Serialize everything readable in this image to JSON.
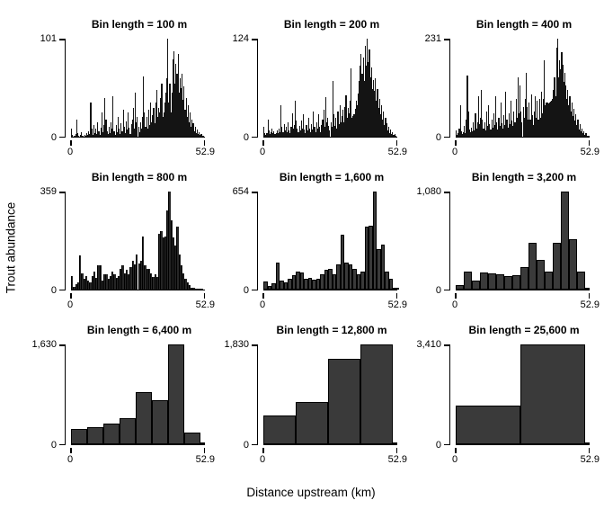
{
  "figure": {
    "ylabel": "Trout abundance",
    "xlabel": "Distance upstream (km)",
    "x_tick_labels": [
      "0",
      "52.9"
    ],
    "background": "#ffffff",
    "axis_color": "#000000",
    "bar_fill": "#3a3a3a",
    "bar_fill_dense": "#141414",
    "text_color": "#000000"
  },
  "chart_data": [
    {
      "type": "bar",
      "title": "Bin length = 100 m",
      "bin_length_m": 100,
      "xlabel": "Distance upstream (km)",
      "ylabel": "Trout abundance",
      "xlim": [
        0,
        52.9
      ],
      "ylim": [
        0,
        101
      ],
      "ymax": 101,
      "ymax_label": "101",
      "y0_label": "0",
      "x_ticks": [
        "0",
        "52.9"
      ],
      "values": [
        8,
        2,
        0,
        1,
        3,
        18,
        4,
        1,
        0,
        2,
        5,
        1,
        0,
        2,
        1,
        4,
        2,
        6,
        3,
        35,
        8,
        2,
        12,
        4,
        8,
        3,
        15,
        6,
        2,
        9,
        25,
        5,
        12,
        40,
        18,
        6,
        3,
        10,
        4,
        15,
        8,
        42,
        6,
        2,
        12,
        5,
        20,
        8,
        3,
        14,
        6,
        28,
        10,
        4,
        16,
        7,
        25,
        9,
        3,
        13,
        18,
        30,
        8,
        45,
        15,
        20,
        10,
        5,
        15,
        8,
        20,
        62,
        25,
        10,
        20,
        8,
        28,
        12,
        35,
        15,
        22,
        30,
        14,
        35,
        48,
        20,
        30,
        25,
        40,
        55,
        20,
        25,
        35,
        45,
        60,
        101,
        35,
        55,
        25,
        45,
        80,
        88,
        55,
        75,
        65,
        85,
        45,
        60,
        50,
        65,
        38,
        52,
        28,
        40,
        20,
        32,
        15,
        25,
        10,
        18,
        14,
        6,
        10,
        4,
        7,
        3,
        5,
        2,
        3,
        1,
        1,
        0
      ]
    },
    {
      "type": "bar",
      "title": "Bin length = 200 m",
      "bin_length_m": 200,
      "xlim": [
        0,
        52.9
      ],
      "ylim": [
        0,
        124
      ],
      "ymax": 124,
      "ymax_label": "124",
      "y0_label": "0",
      "x_ticks": [
        "0",
        "52.9"
      ],
      "values": [
        12,
        4,
        2,
        5,
        22,
        8,
        3,
        6,
        10,
        4,
        7,
        3,
        5,
        8,
        4,
        10,
        6,
        40,
        12,
        6,
        16,
        8,
        12,
        6,
        18,
        8,
        5,
        12,
        30,
        10,
        15,
        45,
        20,
        10,
        6,
        14,
        8,
        20,
        10,
        28,
        9,
        5,
        15,
        8,
        24,
        10,
        6,
        16,
        9,
        32,
        12,
        6,
        18,
        10,
        28,
        12,
        6,
        15,
        22,
        34,
        12,
        50,
        18,
        24,
        14,
        8,
        18,
        12,
        70,
        28,
        14,
        24,
        10,
        32,
        16,
        40,
        18,
        26,
        34,
        18,
        38,
        52,
        24,
        36,
        30,
        46,
        86,
        24,
        26,
        28,
        35,
        45,
        40,
        55,
        70,
        90,
        105,
        80,
        100,
        70,
        115,
        90,
        124,
        95,
        110,
        75,
        88,
        60,
        72,
        58,
        74,
        45,
        60,
        36,
        48,
        28,
        40,
        22,
        32,
        15,
        24,
        17,
        8,
        13,
        5,
        9,
        3,
        6,
        2,
        3,
        1,
        0
      ]
    },
    {
      "type": "bar",
      "title": "Bin length = 400 m",
      "bin_length_m": 400,
      "xlim": [
        0,
        52.9
      ],
      "ylim": [
        0,
        231
      ],
      "ymax": 231,
      "ymax_label": "231",
      "y0_label": "0",
      "x_ticks": [
        "0",
        "52.9"
      ],
      "values": [
        15,
        5,
        8,
        20,
        75,
        12,
        6,
        10,
        25,
        8,
        40,
        145,
        60,
        18,
        10,
        22,
        12,
        35,
        15,
        55,
        20,
        35,
        95,
        30,
        45,
        110,
        40,
        20,
        35,
        15,
        60,
        25,
        75,
        30,
        18,
        40,
        22,
        55,
        28,
        95,
        35,
        18,
        45,
        25,
        80,
        32,
        20,
        50,
        28,
        105,
        40,
        22,
        55,
        30,
        85,
        38,
        25,
        60,
        35,
        90,
        45,
        140,
        55,
        120,
        60,
        35,
        70,
        45,
        90,
        150,
        70,
        40,
        80,
        40,
        100,
        50,
        28,
        60,
        95,
        45,
        85,
        40,
        90,
        45,
        105,
        55,
        90,
        180,
        75,
        80,
        80,
        78,
        80,
        82,
        85,
        90,
        110,
        140,
        95,
        210,
        231,
        140,
        180,
        160,
        200,
        170,
        130,
        150,
        120,
        90,
        110,
        75,
        95,
        60,
        80,
        48,
        65,
        38,
        52,
        28,
        40,
        18,
        30,
        12,
        20,
        8,
        12,
        5,
        8,
        3,
        3,
        1
      ]
    },
    {
      "type": "bar",
      "title": "Bin length = 800 m",
      "bin_length_m": 800,
      "xlim": [
        0,
        52.9
      ],
      "ylim": [
        0,
        359
      ],
      "ymax": 359,
      "ymax_label": "359",
      "y0_label": "0",
      "x_ticks": [
        "0",
        "52.9"
      ],
      "values": [
        50,
        9,
        20,
        28,
        125,
        60,
        40,
        50,
        33,
        28,
        50,
        66,
        44,
        88,
        88,
        33,
        55,
        55,
        40,
        50,
        66,
        55,
        44,
        50,
        77,
        88,
        60,
        72,
        55,
        82,
        105,
        93,
        130,
        94,
        105,
        195,
        90,
        75,
        75,
        60,
        45,
        55,
        45,
        205,
        215,
        190,
        195,
        290,
        359,
        255,
        190,
        160,
        230,
        130,
        90,
        60,
        40,
        25,
        15,
        8,
        5,
        3,
        2,
        1,
        1,
        0
      ]
    },
    {
      "type": "bar",
      "title": "Bin length = 1,600 m",
      "bin_length_m": 1600,
      "xlim": [
        0,
        52.9
      ],
      "ylim": [
        0,
        654
      ],
      "ymax": 654,
      "ymax_label": "654",
      "y0_label": "0",
      "x_ticks": [
        "0",
        "52.9"
      ],
      "values": [
        56,
        23,
        41,
        178,
        60,
        47,
        75,
        98,
        122,
        113,
        75,
        79,
        66,
        75,
        103,
        132,
        141,
        103,
        169,
        366,
        179,
        169,
        141,
        103,
        122,
        423,
        429,
        654,
        273,
        301,
        122,
        71,
        15,
        6
      ]
    },
    {
      "type": "bar",
      "title": "Bin length = 3,200 m",
      "bin_length_m": 3200,
      "xlim": [
        0,
        52.9
      ],
      "ylim": [
        0,
        1080
      ],
      "ymax": 1080,
      "ymax_label": "1,080",
      "y0_label": "0",
      "x_ticks": [
        "0",
        "52.9"
      ],
      "values": [
        47,
        197,
        100,
        187,
        181,
        172,
        150,
        162,
        244,
        515,
        328,
        203,
        515,
        1080,
        556,
        194,
        16
      ]
    },
    {
      "type": "bar",
      "title": "Bin length = 6,400 m",
      "bin_length_m": 6400,
      "xlim": [
        0,
        52.9
      ],
      "ylim": [
        0,
        1630
      ],
      "ymax": 1630,
      "ymax_label": "1,630",
      "y0_label": "0",
      "x_ticks": [
        "0",
        "52.9"
      ],
      "values": [
        250,
        285,
        340,
        430,
        850,
        725,
        1630,
        195,
        5
      ]
    },
    {
      "type": "bar",
      "title": "Bin length = 12,800 m",
      "bin_length_m": 12800,
      "xlim": [
        0,
        52.9
      ],
      "ylim": [
        0,
        1830
      ],
      "ymax": 1830,
      "ymax_label": "1,830",
      "y0_label": "0",
      "x_ticks": [
        "0",
        "52.9"
      ],
      "values": [
        530,
        770,
        1570,
        1830,
        8
      ]
    },
    {
      "type": "bar",
      "title": "Bin length = 25,600 m",
      "bin_length_m": 25600,
      "xlim": [
        0,
        52.9
      ],
      "ylim": [
        0,
        3410
      ],
      "ymax": 3410,
      "ymax_label": "3,410",
      "y0_label": "0",
      "x_ticks": [
        "0",
        "52.9"
      ],
      "values": [
        1310,
        3410,
        8
      ]
    }
  ]
}
